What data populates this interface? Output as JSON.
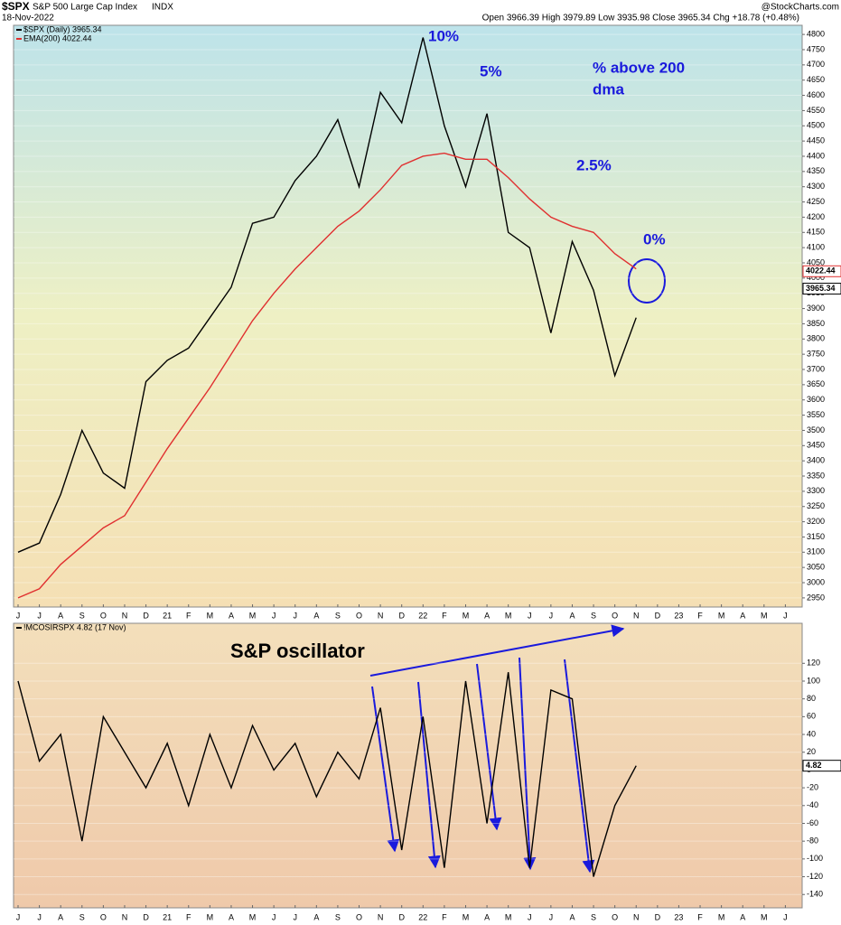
{
  "header": {
    "symbol": "$SPX",
    "name": "S&P 500 Large Cap Index",
    "exchange": "INDX",
    "date": "18-Nov-2022",
    "quote": "Open 3966.39 High 3979.89 Low 3935.98 Close 3965.34 Chg +18.78 (+0.48%)",
    "source": "@StockCharts.com"
  },
  "chart_data": [
    {
      "type": "line",
      "categories": [
        "J",
        "J",
        "A",
        "S",
        "O",
        "N",
        "D",
        "21",
        "F",
        "M",
        "A",
        "M",
        "J",
        "J",
        "A",
        "S",
        "O",
        "N",
        "D",
        "22",
        "F",
        "M",
        "A",
        "M",
        "J",
        "J",
        "A",
        "S",
        "O",
        "N",
        "D",
        "23",
        "F",
        "M",
        "A",
        "M",
        "J"
      ],
      "series": [
        {
          "name": "$SPX (Daily) 3965.34",
          "color": "#000000",
          "last_value": 3965.34,
          "values": [
            3100,
            3130,
            3290,
            3500,
            3360,
            3310,
            3660,
            3730,
            3770,
            3870,
            3970,
            4180,
            4200,
            4320,
            4400,
            4520,
            4300,
            4610,
            4510,
            4790,
            4500,
            4300,
            4540,
            4150,
            4100,
            3820,
            4120,
            3960,
            3680,
            3870,
            null,
            null,
            null,
            null,
            null,
            null,
            null
          ]
        },
        {
          "name": "EMA(200) 4022.44",
          "color": "#e03030",
          "last_value": 4022.44,
          "values": [
            2950,
            2980,
            3060,
            3120,
            3180,
            3220,
            3330,
            3440,
            3540,
            3640,
            3750,
            3860,
            3950,
            4030,
            4100,
            4170,
            4220,
            4290,
            4370,
            4400,
            4410,
            4390,
            4390,
            4330,
            4260,
            4200,
            4170,
            4150,
            4080,
            4030,
            null,
            null,
            null,
            null,
            null,
            null,
            null
          ]
        }
      ],
      "annotations": [
        "10%",
        "5%",
        "2.5%",
        "0%",
        "% above 200",
        "dma"
      ],
      "ylim": [
        2920,
        4830
      ],
      "yticks": [
        2950,
        3000,
        3050,
        3100,
        3150,
        3200,
        3250,
        3300,
        3350,
        3400,
        3450,
        3500,
        3550,
        3600,
        3650,
        3700,
        3750,
        3800,
        3850,
        3900,
        3950,
        4000,
        4050,
        4100,
        4150,
        4200,
        4250,
        4300,
        4350,
        4400,
        4450,
        4500,
        4550,
        4600,
        4650,
        4700,
        4750,
        4800
      ],
      "grid": true
    },
    {
      "type": "line",
      "categories": [
        "J",
        "J",
        "A",
        "S",
        "O",
        "N",
        "D",
        "21",
        "F",
        "M",
        "A",
        "M",
        "J",
        "J",
        "A",
        "S",
        "O",
        "N",
        "D",
        "22",
        "F",
        "M",
        "A",
        "M",
        "J",
        "J",
        "A",
        "S",
        "O",
        "N",
        "D",
        "23",
        "F",
        "M",
        "A",
        "M",
        "J"
      ],
      "series": [
        {
          "name": "!MCOSIRSPX 4.82 (17 Nov)",
          "color": "#000000",
          "last_value": 4.82,
          "values": [
            100,
            10,
            40,
            -80,
            60,
            20,
            -20,
            30,
            -40,
            40,
            -20,
            50,
            0,
            30,
            -30,
            20,
            -10,
            70,
            -90,
            60,
            -110,
            100,
            -60,
            110,
            -110,
            90,
            80,
            -120,
            -40,
            4.82,
            null,
            null,
            null,
            null,
            null,
            null,
            null
          ]
        }
      ],
      "annotations": [
        "S&P oscillator"
      ],
      "ylim": [
        -155,
        165
      ],
      "yticks": [
        -140,
        -120,
        -100,
        -80,
        -60,
        -40,
        -20,
        0,
        20,
        40,
        60,
        80,
        100,
        120
      ],
      "grid": true
    }
  ]
}
